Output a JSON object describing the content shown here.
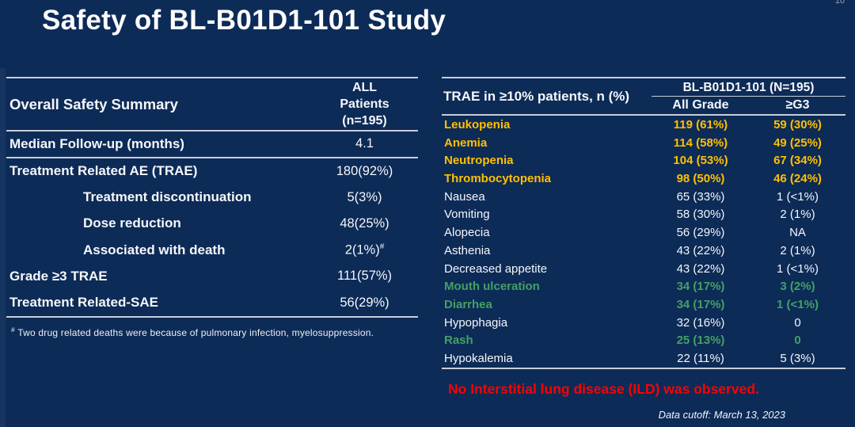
{
  "slide": {
    "page_number": "10",
    "title": "Safety of BL-B01D1-101 Study",
    "data_cutoff": "Data cutoff: March 13, 2023"
  },
  "colors": {
    "background": "#0d2b57",
    "rule_line": "#c7ceda",
    "gold_highlight": "#ffc000",
    "green_highlight": "#43a065",
    "alert_red": "#fe0000"
  },
  "summary_table": {
    "title": "Overall Safety Summary",
    "column_header": "ALL\nPatients\n(n=195)",
    "rows": [
      {
        "label": "Median Follow-up (months)",
        "value": "4.1",
        "indent": false
      },
      {
        "label": "Treatment Related AE (TRAE)",
        "value": "180(92%)",
        "indent": false
      },
      {
        "label": "Treatment discontinuation",
        "value": "5(3%)",
        "indent": true
      },
      {
        "label": "Dose reduction",
        "value": "48(25%)",
        "indent": true
      },
      {
        "label": "Associated with death",
        "value": "2(1%)",
        "value_superscript": "#",
        "indent": true
      },
      {
        "label": "Grade ≥3 TRAE",
        "value": "111(57%)",
        "indent": false
      },
      {
        "label": "Treatment Related-SAE",
        "value": "56(29%)",
        "indent": false
      }
    ],
    "footnote_marker": "#",
    "footnote": "Two drug related deaths were because of pulmonary infection, myelosuppression."
  },
  "trae_table": {
    "row_header": "TRAE in ≥10% patients, n (%)",
    "group_header": "BL-B01D1-101 (N=195)",
    "sub_headers": [
      "All Grade",
      "≥G3"
    ],
    "rows": [
      {
        "name": "Leukopenia",
        "all_grade": "119 (61%)",
        "g3": "59 (30%)",
        "highlight": "gold"
      },
      {
        "name": "Anemia",
        "all_grade": "114 (58%)",
        "g3": "49 (25%)",
        "highlight": "gold"
      },
      {
        "name": "Neutropenia",
        "all_grade": "104 (53%)",
        "g3": "67 (34%)",
        "highlight": "gold"
      },
      {
        "name": "Thrombocytopenia",
        "all_grade": "98 (50%)",
        "g3": "46 (24%)",
        "highlight": "gold"
      },
      {
        "name": "Nausea",
        "all_grade": "65 (33%)",
        "g3": "1 (<1%)",
        "highlight": "none"
      },
      {
        "name": "Vomiting",
        "all_grade": "58 (30%)",
        "g3": "2 (1%)",
        "highlight": "none"
      },
      {
        "name": "Alopecia",
        "all_grade": "56 (29%)",
        "g3": "NA",
        "highlight": "none"
      },
      {
        "name": "Asthenia",
        "all_grade": "43 (22%)",
        "g3": "2 (1%)",
        "highlight": "none"
      },
      {
        "name": "Decreased appetite",
        "all_grade": "43 (22%)",
        "g3": "1 (<1%)",
        "highlight": "none"
      },
      {
        "name": "Mouth ulceration",
        "all_grade": "34 (17%)",
        "g3": "3 (2%)",
        "highlight": "green"
      },
      {
        "name": "Diarrhea",
        "all_grade": "34 (17%)",
        "g3": "1 (<1%)",
        "highlight": "green"
      },
      {
        "name": "Hypophagia",
        "all_grade": "32 (16%)",
        "g3": "0",
        "highlight": "none"
      },
      {
        "name": "Rash",
        "all_grade": "25 (13%)",
        "g3": "0",
        "highlight": "green"
      },
      {
        "name": "Hypokalemia",
        "all_grade": "22 (11%)",
        "g3": "5 (3%)",
        "highlight": "none"
      }
    ],
    "note": "No Interstitial lung disease (ILD) was observed."
  }
}
